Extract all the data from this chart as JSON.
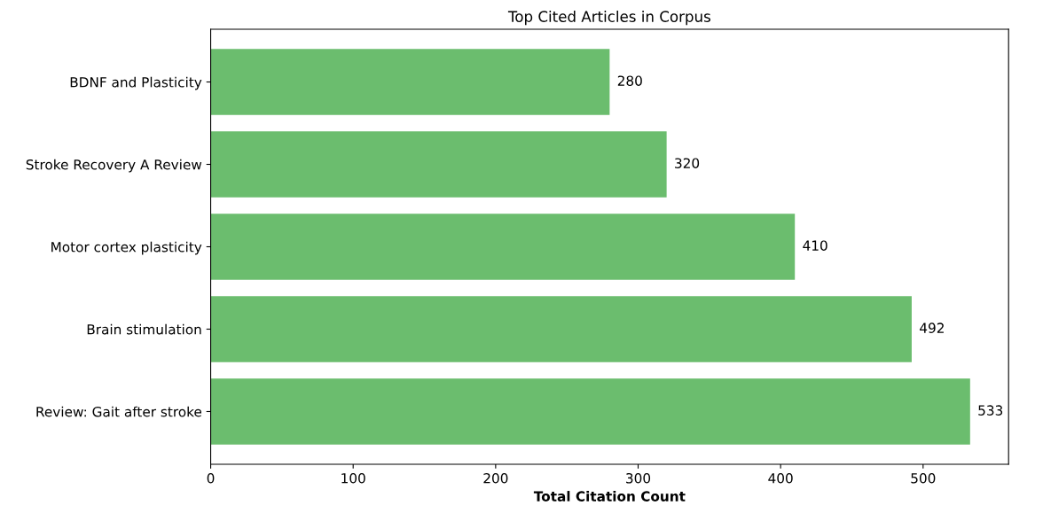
{
  "chart_data": {
    "type": "bar",
    "orientation": "horizontal",
    "title": "Top Cited Articles in Corpus",
    "xlabel": "Total Citation Count",
    "categories": [
      "BDNF and Plasticity",
      "Stroke Recovery A Review",
      "Motor cortex plasticity",
      "Brain stimulation",
      "Review: Gait after stroke"
    ],
    "values": [
      280,
      320,
      410,
      492,
      533
    ],
    "color": "#6bbd6e",
    "xlim": [
      0,
      560
    ],
    "xticks": [
      0,
      100,
      200,
      300,
      400,
      500
    ],
    "grid": false,
    "data_labels": true
  }
}
